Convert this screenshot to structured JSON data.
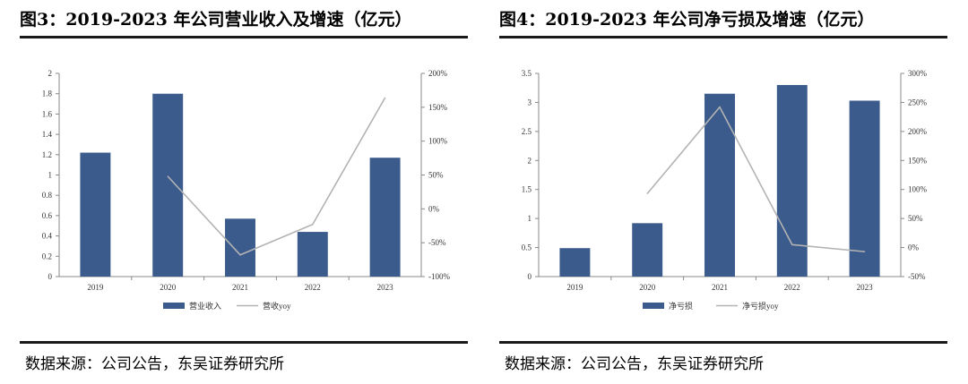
{
  "panels": [
    {
      "title": "图3：2019-2023 年公司营业收入及增速（亿元）",
      "source": "数据来源：公司公告，东吴证券研究所"
    },
    {
      "title": "图4：2019-2023 年公司净亏损及增速（亿元）",
      "source": "数据来源：公司公告，东吴证券研究所"
    }
  ],
  "chart_data": [
    {
      "type": "bar",
      "categories": [
        "2019",
        "2020",
        "2021",
        "2022",
        "2023"
      ],
      "series": [
        {
          "name": "营业收入",
          "type": "bar",
          "axis": "left",
          "color": "#3b5b8c",
          "values": [
            1.22,
            1.8,
            0.57,
            0.44,
            1.17
          ]
        },
        {
          "name": "营收yoy",
          "type": "line",
          "axis": "right",
          "color": "#b3b3b3",
          "values": [
            null,
            48,
            -68,
            -23,
            164
          ]
        }
      ],
      "y_left": {
        "ticks": [
          "0",
          "0.2",
          "0.4",
          "0.6",
          "0.8",
          "1",
          "1.2",
          "1.4",
          "1.6",
          "1.8",
          "2"
        ],
        "lim": [
          0,
          2
        ]
      },
      "y_right": {
        "ticks": [
          "-100%",
          "-50%",
          "0%",
          "50%",
          "100%",
          "150%",
          "200%"
        ],
        "lim": [
          -100,
          200
        ]
      },
      "legend": "bottom-center"
    },
    {
      "type": "bar",
      "categories": [
        "2019",
        "2020",
        "2021",
        "2022",
        "2023"
      ],
      "series": [
        {
          "name": "净亏损",
          "type": "bar",
          "axis": "left",
          "color": "#3b5b8c",
          "values": [
            0.49,
            0.92,
            3.15,
            3.3,
            3.03
          ]
        },
        {
          "name": "净亏损yoy",
          "type": "line",
          "axis": "right",
          "color": "#b3b3b3",
          "values": [
            null,
            93,
            242,
            5,
            -7
          ]
        }
      ],
      "y_left": {
        "ticks": [
          "0",
          "0.5",
          "1",
          "1.5",
          "2",
          "2.5",
          "3",
          "3.5"
        ],
        "lim": [
          0,
          3.5
        ]
      },
      "y_right": {
        "ticks": [
          "-50%",
          "0%",
          "50%",
          "100%",
          "150%",
          "200%",
          "250%",
          "300%"
        ],
        "lim": [
          -50,
          300
        ]
      },
      "legend": "bottom-center"
    }
  ]
}
